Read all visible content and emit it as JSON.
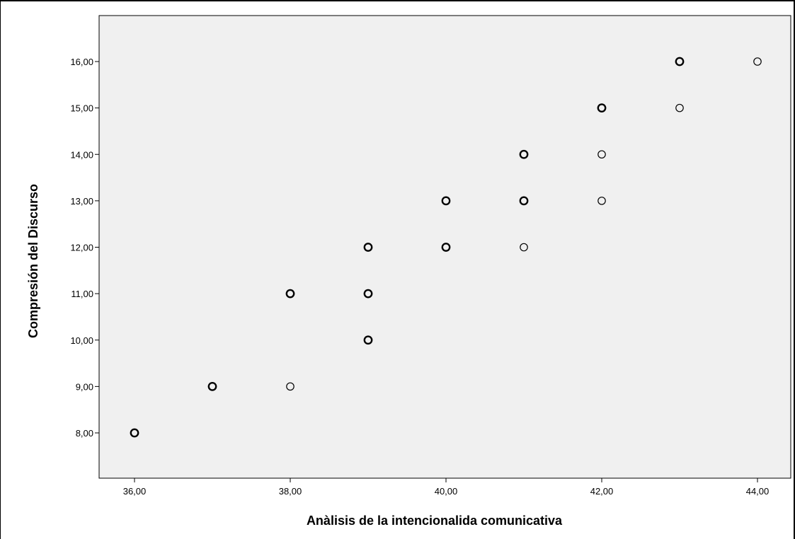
{
  "chart_data": {
    "type": "scatter",
    "title": "",
    "xlabel": "Anàlisis de la intencionalida comunicativa",
    "ylabel": "Compresión del Discurso",
    "xlim": [
      36,
      44
    ],
    "ylim": [
      8,
      16
    ],
    "x_ticks": [
      "36,00",
      "38,00",
      "40,00",
      "42,00",
      "44,00"
    ],
    "y_ticks": [
      "8,00",
      "9,00",
      "10,00",
      "11,00",
      "12,00",
      "13,00",
      "14,00",
      "15,00",
      "16,00"
    ],
    "grid": false,
    "legend": "none",
    "colors": {
      "plot_background": "#f0f0f0",
      "marker_stroke": "#000000"
    },
    "points": [
      {
        "x": 36,
        "y": 8,
        "overlap": true
      },
      {
        "x": 37,
        "y": 9,
        "overlap": true
      },
      {
        "x": 38,
        "y": 9,
        "overlap": false
      },
      {
        "x": 38,
        "y": 11,
        "overlap": true
      },
      {
        "x": 39,
        "y": 10,
        "overlap": true
      },
      {
        "x": 39,
        "y": 11,
        "overlap": true
      },
      {
        "x": 39,
        "y": 12,
        "overlap": true
      },
      {
        "x": 40,
        "y": 12,
        "overlap": true
      },
      {
        "x": 40,
        "y": 13,
        "overlap": true
      },
      {
        "x": 41,
        "y": 12,
        "overlap": false
      },
      {
        "x": 41,
        "y": 13,
        "overlap": true
      },
      {
        "x": 41,
        "y": 14,
        "overlap": true
      },
      {
        "x": 42,
        "y": 13,
        "overlap": false
      },
      {
        "x": 42,
        "y": 14,
        "overlap": false
      },
      {
        "x": 42,
        "y": 15,
        "overlap": true
      },
      {
        "x": 43,
        "y": 15,
        "overlap": false
      },
      {
        "x": 43,
        "y": 16,
        "overlap": true
      },
      {
        "x": 44,
        "y": 16,
        "overlap": false
      }
    ]
  }
}
